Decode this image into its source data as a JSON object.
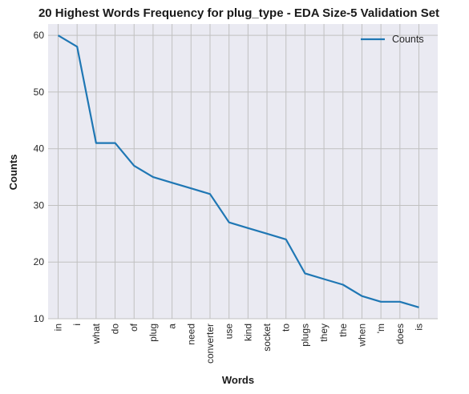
{
  "chart_data": {
    "type": "line",
    "title": "20 Highest Words Frequency for plug_type - EDA Size-5 Validation Set",
    "xlabel": "Words",
    "ylabel": "Counts",
    "categories": [
      "in",
      "i",
      "what",
      "do",
      "of",
      "plug",
      "a",
      "need",
      "converter",
      "use",
      "kind",
      "socket",
      "to",
      "plugs",
      "they",
      "the",
      "when",
      "'m",
      "does",
      "is"
    ],
    "series": [
      {
        "name": "Counts",
        "values": [
          60,
          58,
          41,
          41,
          37,
          35,
          34,
          33,
          32,
          27,
          26,
          25,
          24,
          18,
          17,
          16,
          14,
          13,
          13,
          12
        ],
        "color": "#1f77b4"
      }
    ],
    "yticks": [
      10,
      20,
      30,
      40,
      50,
      60
    ],
    "ylim": [
      10,
      62
    ],
    "grid": true,
    "legend": "top-right",
    "background": "#eaeaf2",
    "grid_color": "#c0c0c0"
  }
}
